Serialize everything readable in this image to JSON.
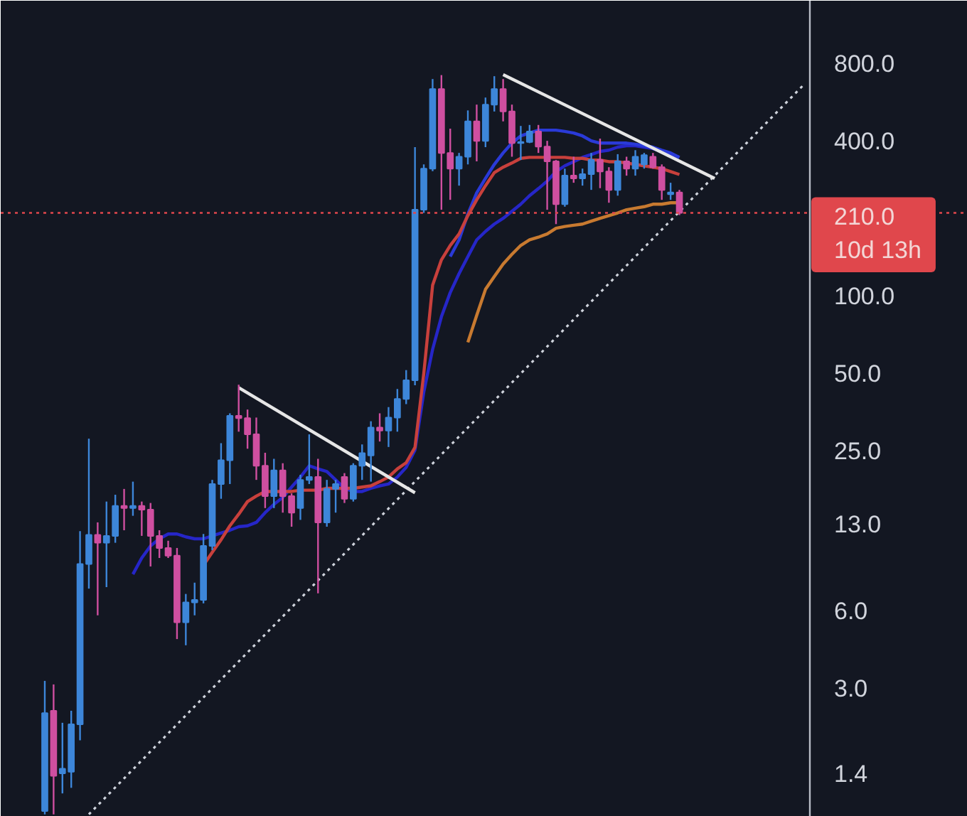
{
  "chart_data": {
    "type": "candlestick",
    "log": true,
    "tick_labels": "y",
    "ylim": [
      0.95,
      1400
    ],
    "yticks": [
      {
        "value": 800,
        "label": "800.0"
      },
      {
        "value": 400,
        "label": "400.0"
      },
      {
        "value": 210,
        "label": "210.0"
      },
      {
        "value": 100,
        "label": "100.0"
      },
      {
        "value": 50,
        "label": "50.0"
      },
      {
        "value": 25,
        "label": "25.0"
      },
      {
        "value": 13,
        "label": "13.0"
      },
      {
        "value": 6,
        "label": "6.0"
      },
      {
        "value": 3,
        "label": "3.0"
      },
      1.4
    ],
    "categories": [
      null,
      null,
      null,
      null,
      null,
      null,
      null,
      null,
      null,
      null,
      null,
      null,
      null,
      null,
      null,
      null,
      null,
      null,
      null,
      null,
      null,
      null,
      null,
      null,
      null,
      null,
      null,
      null,
      null,
      null,
      null,
      null,
      null,
      null,
      null,
      null,
      null,
      null,
      null,
      null,
      null,
      null,
      null,
      null,
      null,
      null,
      null,
      null,
      null,
      null,
      null,
      null,
      null,
      null,
      null,
      null,
      null,
      null,
      null,
      null,
      null,
      null,
      null,
      null,
      null,
      null,
      null,
      null,
      null,
      null,
      null,
      null,
      null,
      null,
      null,
      null,
      null,
      null,
      null,
      null,
      null,
      null,
      null,
      null,
      null,
      null,
      null
    ],
    "ohlc": [
      [
        1.0,
        3.2,
        0.97,
        2.4
      ],
      [
        2.45,
        3.1,
        0.97,
        1.37
      ],
      [
        1.4,
        2.2,
        1.17,
        1.46
      ],
      [
        1.42,
        2.45,
        1.23,
        2.17
      ],
      [
        2.17,
        12.2,
        1.88,
        9.1
      ],
      [
        9.1,
        27.9,
        7.3,
        11.8
      ],
      [
        11.8,
        13.2,
        5.75,
        11.0
      ],
      [
        11.0,
        15.9,
        7.4,
        11.7
      ],
      [
        11.7,
        16.9,
        11.0,
        15.3
      ],
      [
        15.3,
        17.8,
        12.3,
        15.0
      ],
      [
        15.0,
        19.0,
        14.0,
        15.3
      ],
      [
        15.3,
        15.9,
        11.7,
        14.8
      ],
      [
        14.8,
        15.7,
        8.9,
        11.7
      ],
      [
        11.7,
        12.3,
        9.6,
        10.5
      ],
      [
        10.5,
        11.2,
        9.6,
        9.8
      ],
      [
        9.8,
        10.5,
        4.65,
        5.4
      ],
      [
        5.4,
        6.96,
        4.4,
        6.45
      ],
      [
        6.45,
        7.7,
        5.75,
        6.6
      ],
      [
        6.6,
        11.9,
        6.4,
        10.7
      ],
      [
        10.7,
        19.3,
        10.3,
        18.6
      ],
      [
        18.6,
        26.8,
        16.3,
        23
      ],
      [
        23,
        35,
        18.6,
        34.2
      ],
      [
        34.2,
        45.2,
        29.7,
        33.5
      ],
      [
        33.5,
        36.2,
        25.5,
        29
      ],
      [
        29,
        33.7,
        19.3,
        21.9
      ],
      [
        21.9,
        24.6,
        15.0,
        16.7
      ],
      [
        16.7,
        23.3,
        15.0,
        21
      ],
      [
        21,
        22.4,
        14.4,
        16.7
      ],
      [
        16.7,
        17.1,
        12.7,
        14.4
      ],
      [
        15,
        20.2,
        13.5,
        19.3
      ],
      [
        19.3,
        29.0,
        18.6,
        19.8
      ],
      [
        19.8,
        23.3,
        7.0,
        13.2
      ],
      [
        13.2,
        19.3,
        12.7,
        17.8
      ],
      [
        17.8,
        19.3,
        14.4,
        18.6
      ],
      [
        19.8,
        20.5,
        15.7,
        16.3
      ],
      [
        16.3,
        22.4,
        15.9,
        21.9
      ],
      [
        21.9,
        26.5,
        19.3,
        24.5
      ],
      [
        24,
        32.6,
        19,
        30.8
      ],
      [
        30.8,
        35,
        27.2,
        30
      ],
      [
        30,
        37,
        25.9,
        33.7
      ],
      [
        33.7,
        43.5,
        29.7,
        39.8
      ],
      [
        39.8,
        51.5,
        38,
        47
      ],
      [
        47,
        378,
        45,
        216
      ],
      [
        216,
        324,
        210,
        312
      ],
      [
        312,
        695,
        305,
        636
      ],
      [
        636,
        720,
        216,
        359
      ],
      [
        359,
        446,
        236,
        312
      ],
      [
        312,
        359,
        268,
        347
      ],
      [
        347,
        525,
        324,
        476
      ],
      [
        476,
        553,
        333,
        400
      ],
      [
        400,
        589,
        378,
        553
      ],
      [
        553,
        713,
        520,
        636
      ],
      [
        636,
        695,
        476,
        520
      ],
      [
        520,
        553,
        347,
        392
      ],
      [
        392,
        457,
        337,
        396
      ],
      [
        396,
        461,
        392,
        435
      ],
      [
        435,
        461,
        359,
        380
      ],
      [
        380,
        400,
        216,
        333
      ],
      [
        333,
        337,
        190,
        227
      ],
      [
        227,
        312,
        222,
        293
      ],
      [
        293,
        347,
        275,
        286
      ],
      [
        286,
        312,
        268,
        297
      ],
      [
        297,
        359,
        258,
        337
      ],
      [
        337,
        408,
        262,
        304
      ],
      [
        304,
        316,
        230,
        258
      ],
      [
        258,
        355,
        245,
        333
      ],
      [
        333,
        347,
        293,
        312
      ],
      [
        312,
        368,
        293,
        347
      ],
      [
        324,
        359,
        312,
        352
      ],
      [
        347,
        359,
        312,
        316
      ],
      [
        316,
        324,
        236,
        258
      ],
      [
        248,
        275,
        236,
        252
      ],
      [
        252,
        258,
        206,
        210
      ],
      null,
      null,
      null,
      null,
      null,
      null,
      null,
      null,
      null,
      null,
      null,
      null,
      null,
      null
    ],
    "colors": [
      "#3d86d9",
      "#cf4fa0",
      "#3d86d9",
      "#3d86d9",
      "#3d86d9",
      "#3d86d9",
      "#cf4fa0",
      "#3d86d9",
      "#3d86d9",
      "#cf4fa0",
      "#3d86d9",
      "#cf4fa0",
      "#cf4fa0",
      "#cf4fa0",
      "#cf4fa0",
      "#cf4fa0",
      "#3d86d9",
      "#3d86d9",
      "#3d86d9",
      "#3d86d9",
      "#3d86d9",
      "#3d86d9",
      "#cf4fa0",
      "#cf4fa0",
      "#cf4fa0",
      "#cf4fa0",
      "#3d86d9",
      "#cf4fa0",
      "#cf4fa0",
      "#3d86d9",
      "#3d86d9",
      "#cf4fa0",
      "#3d86d9",
      "#3d86d9",
      "#cf4fa0",
      "#3d86d9",
      "#3d86d9",
      "#3d86d9",
      "#cf4fa0",
      "#3d86d9",
      "#3d86d9",
      "#3d86d9",
      "#3d86d9",
      "#3d86d9",
      "#3d86d9",
      "#cf4fa0",
      "#cf4fa0",
      "#3d86d9",
      "#3d86d9",
      "#cf4fa0",
      "#3d86d9",
      "#3d86d9",
      "#cf4fa0",
      "#cf4fa0",
      "#3d86d9",
      "#3d86d9",
      "#cf4fa0",
      "#cf4fa0",
      "#cf4fa0",
      "#3d86d9",
      "#cf4fa0",
      "#3d86d9",
      "#3d86d9",
      "#cf4fa0",
      "#cf4fa0",
      "#3d86d9",
      "#cf4fa0",
      "#3d86d9",
      "#3d86d9",
      "#cf4fa0",
      "#cf4fa0",
      "#3d86d9",
      "#cf4fa0",
      null,
      null,
      null,
      null,
      null,
      null,
      null,
      null,
      null,
      null,
      null,
      null,
      null,
      null
    ],
    "series": [
      {
        "type": "line",
        "color": "#2626c8",
        "values": [
          null,
          null,
          null,
          null,
          null,
          null,
          null,
          null,
          null,
          null,
          8.3,
          9.6,
          10.7,
          11.4,
          11.9,
          11.9,
          11.6,
          11.4,
          11.4,
          11.7,
          12.0,
          12.3,
          12.7,
          12.8,
          13.2,
          14.4,
          15.5,
          16.5,
          18.1,
          19.8,
          21.9,
          21.3,
          20.8,
          19.3,
          17.9,
          17.4,
          17.4,
          17.9,
          18.3,
          18.6,
          19.8,
          21.6,
          25.2,
          42.3,
          62,
          83,
          103,
          122,
          142,
          165,
          178,
          190,
          200,
          213,
          227,
          245,
          261,
          279,
          304,
          320,
          332,
          345,
          354,
          364,
          368,
          378,
          383,
          383,
          378,
          373,
          364,
          354,
          345,
          null,
          null,
          null,
          null,
          null,
          null,
          null,
          null,
          null,
          null,
          null,
          null,
          null,
          null
        ]
      },
      {
        "type": "line",
        "color": "#2a3ad8",
        "values": [
          null,
          null,
          null,
          null,
          null,
          null,
          null,
          null,
          null,
          null,
          null,
          null,
          null,
          null,
          null,
          null,
          null,
          null,
          null,
          null,
          null,
          null,
          null,
          null,
          null,
          null,
          null,
          null,
          null,
          null,
          null,
          null,
          null,
          null,
          null,
          null,
          null,
          null,
          null,
          null,
          null,
          null,
          null,
          null,
          null,
          null,
          142,
          165,
          208,
          251,
          286,
          324,
          359,
          392,
          418,
          429,
          440,
          440,
          440,
          435,
          429,
          418,
          400,
          392,
          392,
          392,
          392,
          388,
          383,
          378,
          368,
          359,
          345,
          null,
          null,
          null,
          null,
          null,
          null,
          null,
          null,
          null,
          null,
          null,
          null,
          null,
          null
        ]
      },
      {
        "type": "line",
        "color": "#c8403c",
        "values": [
          null,
          null,
          null,
          null,
          null,
          null,
          null,
          null,
          null,
          null,
          null,
          null,
          null,
          null,
          null,
          null,
          null,
          null,
          9.0,
          10.1,
          11.3,
          12.8,
          14.2,
          15.9,
          16.7,
          17.4,
          17.4,
          17.4,
          17.4,
          17.6,
          17.6,
          17.6,
          17.9,
          17.9,
          17.9,
          17.9,
          18.1,
          18.3,
          19.0,
          19.8,
          21.3,
          22.5,
          25.8,
          50,
          110,
          138,
          157,
          174,
          205,
          236,
          268,
          301,
          316,
          328,
          342,
          345,
          345,
          345,
          345,
          345,
          342,
          342,
          337,
          337,
          332,
          332,
          328,
          324,
          320,
          316,
          312,
          304,
          296,
          null,
          null,
          null,
          null,
          null,
          null,
          null,
          null,
          null,
          null,
          null,
          null,
          null,
          null
        ]
      },
      {
        "type": "line",
        "color": "#c87a30",
        "values": [
          null,
          null,
          null,
          null,
          null,
          null,
          null,
          null,
          null,
          null,
          null,
          null,
          null,
          null,
          null,
          null,
          null,
          null,
          null,
          null,
          null,
          null,
          null,
          null,
          null,
          null,
          null,
          null,
          null,
          null,
          null,
          null,
          null,
          null,
          null,
          null,
          null,
          null,
          null,
          null,
          null,
          null,
          null,
          null,
          null,
          null,
          null,
          null,
          66,
          84,
          106,
          119,
          133,
          145,
          157,
          165,
          169,
          174,
          183,
          186,
          188,
          190,
          195,
          200,
          205,
          210,
          216,
          219,
          222,
          227,
          227,
          230,
          230,
          null,
          null,
          null,
          null,
          null,
          null,
          null,
          null,
          null,
          null,
          null,
          null,
          null,
          null
        ]
      },
      {
        "type": "line",
        "color": "#cfd3dc",
        "line_style": "dotted",
        "values": [
          null,
          null,
          null,
          null,
          null,
          0.97,
          null,
          null,
          null,
          null,
          null,
          null,
          null,
          null,
          null,
          null,
          null,
          null,
          null,
          null,
          null,
          null,
          null,
          null,
          null,
          null,
          null,
          null,
          null,
          null,
          null,
          null,
          null,
          null,
          null,
          null,
          null,
          null,
          null,
          null,
          null,
          null,
          null,
          null,
          null,
          null,
          null,
          null,
          null,
          null,
          null,
          null,
          null,
          null,
          null,
          null,
          null,
          null,
          null,
          null,
          null,
          null,
          null,
          null,
          null,
          null,
          null,
          null,
          null,
          null,
          null,
          null,
          null,
          null,
          null,
          null,
          null,
          null,
          null,
          null,
          null,
          null,
          null,
          null,
          null,
          null,
          655
        ]
      },
      {
        "type": "line",
        "color": "#e6e6e6",
        "values": [
          null,
          null,
          null,
          null,
          null,
          null,
          null,
          null,
          null,
          null,
          null,
          null,
          null,
          null,
          null,
          null,
          null,
          null,
          null,
          null,
          null,
          null,
          44,
          null,
          null,
          null,
          null,
          null,
          null,
          null,
          null,
          null,
          null,
          null,
          null,
          null,
          null,
          null,
          null,
          null,
          null,
          null,
          17.2,
          null,
          null,
          null,
          null,
          null,
          null,
          null,
          null,
          null,
          null,
          null,
          null,
          null,
          null,
          null,
          null,
          null,
          null,
          null,
          null,
          null,
          null,
          null,
          null,
          null,
          null,
          null,
          null,
          null,
          null,
          null,
          null,
          null,
          null,
          null,
          null,
          null,
          null,
          null,
          null,
          null,
          null,
          null,
          null
        ]
      },
      {
        "type": "line",
        "color": "#e6e6e6",
        "values": [
          null,
          null,
          null,
          null,
          null,
          null,
          null,
          null,
          null,
          null,
          null,
          null,
          null,
          null,
          null,
          null,
          null,
          null,
          null,
          null,
          null,
          null,
          null,
          null,
          null,
          null,
          null,
          null,
          null,
          null,
          null,
          null,
          null,
          null,
          null,
          null,
          null,
          null,
          null,
          null,
          null,
          null,
          null,
          null,
          null,
          null,
          null,
          null,
          null,
          null,
          null,
          null,
          723,
          null,
          null,
          null,
          null,
          null,
          null,
          null,
          null,
          null,
          null,
          null,
          null,
          null,
          null,
          null,
          null,
          null,
          null,
          null,
          null,
          null,
          null,
          null,
          286,
          null,
          null,
          null,
          null,
          null,
          null,
          null,
          null,
          null,
          null
        ]
      }
    ],
    "ref_lines": [
      {
        "axis": "y",
        "value": 210,
        "label": "10d 13h",
        "color": "#e0474c",
        "line_style": "dotted"
      }
    ]
  }
}
